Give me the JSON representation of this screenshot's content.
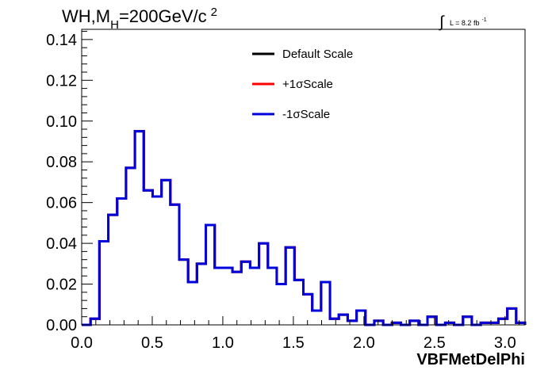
{
  "colors": {
    "background": "#ffffff",
    "frame": "#000000",
    "default_scale": "#000000",
    "plus_sigma": "#ff0000",
    "minus_sigma": "#0000dd"
  },
  "chart_data": {
    "type": "line",
    "title": "WH,M_H=200GeV/c^2",
    "title_parts": {
      "main": "WH,M",
      "subscript": "H",
      "rest": "=200GeV/c",
      "superscript": "2"
    },
    "luminosity": {
      "symbol": "∫",
      "text": "L = 8.2 fb",
      "superscript": "-1"
    },
    "xlabel": "VBFMetDelPhi",
    "ylabel": "",
    "xlim": [
      0.0,
      3.1416
    ],
    "ylim": [
      0.0,
      0.145
    ],
    "x_ticks": [
      {
        "value": 0.0,
        "label": "0.0"
      },
      {
        "value": 0.5,
        "label": "0.5"
      },
      {
        "value": 1.0,
        "label": "1.0"
      },
      {
        "value": 1.5,
        "label": "1.5"
      },
      {
        "value": 2.0,
        "label": "2.0"
      },
      {
        "value": 2.5,
        "label": "2.5"
      },
      {
        "value": 3.0,
        "label": "3.0"
      }
    ],
    "y_ticks": [
      {
        "value": 0.0,
        "label": "0.00"
      },
      {
        "value": 0.02,
        "label": "0.02"
      },
      {
        "value": 0.04,
        "label": "0.04"
      },
      {
        "value": 0.06,
        "label": "0.06"
      },
      {
        "value": 0.08,
        "label": "0.08"
      },
      {
        "value": 0.1,
        "label": "0.10"
      },
      {
        "value": 0.12,
        "label": "0.12"
      },
      {
        "value": 0.14,
        "label": "0.14"
      }
    ],
    "grid": false,
    "legend_position": "top-center",
    "legend": [
      {
        "label": "Default Scale",
        "color": "#000000"
      },
      {
        "label": "+1σScale",
        "color": "#ff0000"
      },
      {
        "label": "-1σScale",
        "color": "#0000dd"
      }
    ],
    "bin_edges": [
      0.0,
      0.0628,
      0.1257,
      0.1885,
      0.2513,
      0.3142,
      0.377,
      0.4398,
      0.5027,
      0.5655,
      0.6283,
      0.6912,
      0.754,
      0.8168,
      0.8796,
      0.9425,
      1.0053,
      1.0681,
      1.131,
      1.1938,
      1.2566,
      1.3195,
      1.3823,
      1.4451,
      1.508,
      1.5708,
      1.6336,
      1.6965,
      1.7593,
      1.8221,
      1.885,
      1.9478,
      2.0106,
      2.0735,
      2.1363,
      2.1991,
      2.2619,
      2.3248,
      2.3876,
      2.4504,
      2.5133,
      2.5761,
      2.6389,
      2.7018,
      2.7646,
      2.8274,
      2.8903,
      2.9531,
      3.0159,
      3.0788,
      3.1416
    ],
    "series": [
      {
        "name": "Default Scale",
        "color": "#000000",
        "values": [
          0.0,
          0.003,
          0.041,
          0.054,
          0.062,
          0.077,
          0.095,
          0.066,
          0.063,
          0.071,
          0.059,
          0.032,
          0.021,
          0.03,
          0.049,
          0.028,
          0.028,
          0.026,
          0.031,
          0.028,
          0.04,
          0.028,
          0.02,
          0.038,
          0.022,
          0.015,
          0.007,
          0.021,
          0.003,
          0.005,
          0.002,
          0.007,
          0.0,
          0.002,
          0.0,
          0.001,
          0.0,
          0.002,
          0.0,
          0.004,
          0.0,
          0.001,
          0.0,
          0.004,
          0.0,
          0.001,
          0.001,
          0.003,
          0.008,
          0.001
        ]
      },
      {
        "name": "+1σScale",
        "color": "#ff0000",
        "values": [
          0.0,
          0.003,
          0.041,
          0.054,
          0.062,
          0.077,
          0.095,
          0.066,
          0.063,
          0.071,
          0.059,
          0.032,
          0.021,
          0.03,
          0.049,
          0.028,
          0.028,
          0.026,
          0.031,
          0.028,
          0.04,
          0.028,
          0.02,
          0.038,
          0.022,
          0.015,
          0.007,
          0.021,
          0.003,
          0.005,
          0.002,
          0.007,
          0.0,
          0.002,
          0.0,
          0.001,
          0.0,
          0.002,
          0.0,
          0.004,
          0.0,
          0.001,
          0.0,
          0.004,
          0.0,
          0.001,
          0.001,
          0.003,
          0.008,
          0.001
        ]
      },
      {
        "name": "-1σScale",
        "color": "#0000dd",
        "values": [
          0.0,
          0.003,
          0.041,
          0.054,
          0.062,
          0.077,
          0.095,
          0.066,
          0.063,
          0.071,
          0.059,
          0.032,
          0.021,
          0.03,
          0.049,
          0.028,
          0.028,
          0.026,
          0.031,
          0.028,
          0.04,
          0.028,
          0.02,
          0.038,
          0.022,
          0.015,
          0.007,
          0.021,
          0.003,
          0.005,
          0.002,
          0.007,
          0.0,
          0.002,
          0.0,
          0.001,
          0.0,
          0.002,
          0.0,
          0.004,
          0.0,
          0.001,
          0.0,
          0.004,
          0.0,
          0.001,
          0.001,
          0.003,
          0.008,
          0.001
        ]
      }
    ]
  }
}
